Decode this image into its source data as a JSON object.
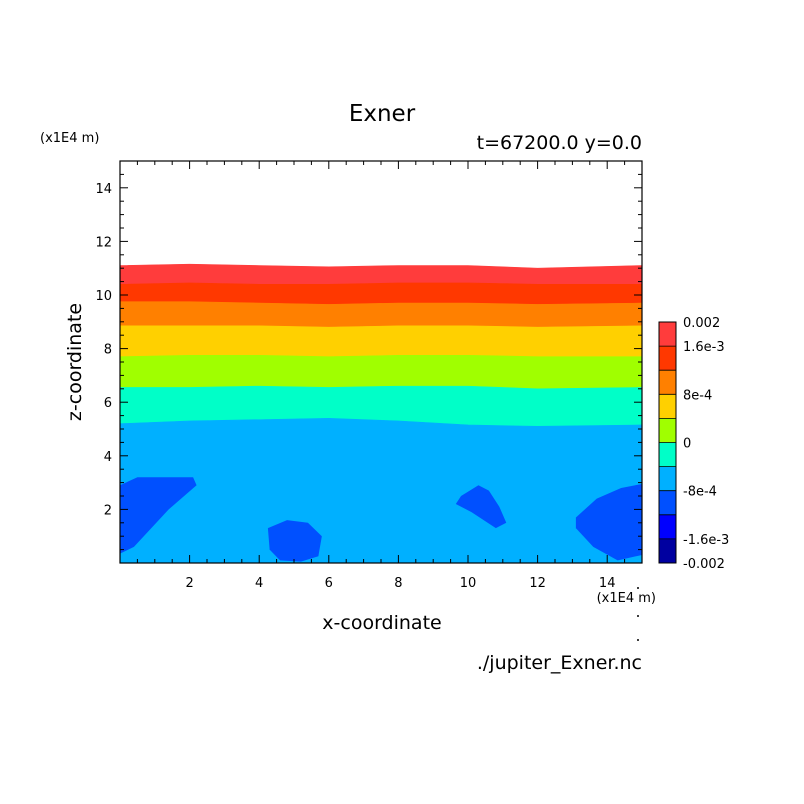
{
  "chart_data": {
    "type": "contour",
    "title": "Exner",
    "subtitle": "t=67200.0 y=0.0",
    "xlabel": "x-coordinate",
    "ylabel": "z-coordinate",
    "x_unit": "(x1E4 m)",
    "y_unit": "(x1E4 m)",
    "xlim": [
      0,
      15
    ],
    "ylim": [
      0,
      15
    ],
    "x_ticks": [
      2,
      4,
      6,
      8,
      10,
      12,
      14
    ],
    "y_ticks": [
      2,
      4,
      6,
      8,
      10,
      12,
      14
    ],
    "footer": "./jupiter_Exner.nc",
    "grid": false,
    "colorbar": {
      "location": "right",
      "levels": [
        -0.002,
        -0.0016,
        -0.0012,
        -0.0008,
        -0.0004,
        0,
        0.0004,
        0.0008,
        0.0012,
        0.0016,
        0.002
      ],
      "colors": [
        "#0000a0",
        "#0000ff",
        "#0050ff",
        "#00b0ff",
        "#00ffc8",
        "#a0ff00",
        "#ffd000",
        "#ff8000",
        "#ff3800",
        "#ff3c3c"
      ],
      "tick_labels": [
        {
          "value": 0.002,
          "label": "0.002"
        },
        {
          "value": 0.0016,
          "label": "1.6e-3"
        },
        {
          "value": 0.0008,
          "label": "8e-4"
        },
        {
          "value": 0,
          "label": "0"
        },
        {
          "value": -0.0008,
          "label": "-8e-4"
        },
        {
          "value": -0.0016,
          "label": "-1.6e-3"
        },
        {
          "value": -0.002,
          "label": "-0.002"
        }
      ]
    },
    "bands": [
      {
        "color": "#ff3c3c",
        "z_top": [
          11.1,
          11.15,
          11.1,
          11.05,
          11.1,
          11.1,
          11.0,
          11.1
        ],
        "z_bottom": [
          10.4,
          10.45,
          10.4,
          10.4,
          10.45,
          10.45,
          10.4,
          10.4
        ]
      },
      {
        "color": "#ff3800",
        "z_top": [
          10.4,
          10.45,
          10.4,
          10.4,
          10.45,
          10.45,
          10.4,
          10.4
        ],
        "z_bottom": [
          9.75,
          9.75,
          9.7,
          9.65,
          9.7,
          9.7,
          9.65,
          9.7
        ]
      },
      {
        "color": "#ff8000",
        "z_top": [
          9.75,
          9.75,
          9.7,
          9.65,
          9.7,
          9.7,
          9.65,
          9.7
        ],
        "z_bottom": [
          8.85,
          8.85,
          8.85,
          8.8,
          8.85,
          8.85,
          8.8,
          8.85
        ]
      },
      {
        "color": "#ffd000",
        "z_top": [
          8.85,
          8.85,
          8.85,
          8.8,
          8.85,
          8.85,
          8.8,
          8.85
        ],
        "z_bottom": [
          7.7,
          7.75,
          7.75,
          7.7,
          7.75,
          7.75,
          7.7,
          7.7
        ]
      },
      {
        "color": "#a0ff00",
        "z_top": [
          7.7,
          7.75,
          7.75,
          7.7,
          7.75,
          7.75,
          7.7,
          7.7
        ],
        "z_bottom": [
          6.55,
          6.55,
          6.6,
          6.55,
          6.6,
          6.6,
          6.5,
          6.55
        ]
      },
      {
        "color": "#00ffc8",
        "z_top": [
          6.55,
          6.55,
          6.6,
          6.55,
          6.6,
          6.6,
          6.5,
          6.55
        ],
        "z_bottom": [
          5.2,
          5.3,
          5.35,
          5.4,
          5.3,
          5.15,
          5.1,
          5.15
        ]
      },
      {
        "color": "#00b0ff",
        "z_top": [
          5.2,
          5.3,
          5.35,
          5.4,
          5.3,
          5.15,
          5.1,
          5.15
        ],
        "z_bottom": [
          0,
          0,
          0,
          0,
          0,
          0,
          0,
          0
        ]
      }
    ],
    "band_x": [
      0,
      2,
      4,
      6,
      8,
      10,
      12,
      15
    ],
    "blobs": [
      {
        "color": "#0050ff",
        "points": [
          [
            0,
            2.9
          ],
          [
            0.5,
            3.2
          ],
          [
            2.1,
            3.2
          ],
          [
            2.2,
            2.9
          ],
          [
            1.4,
            2.0
          ],
          [
            0.4,
            0.6
          ],
          [
            0,
            0.35
          ]
        ]
      },
      {
        "color": "#0050ff",
        "points": [
          [
            4.25,
            1.3
          ],
          [
            4.8,
            1.6
          ],
          [
            5.4,
            1.5
          ],
          [
            5.8,
            1.0
          ],
          [
            5.7,
            0.25
          ],
          [
            5.2,
            0.05
          ],
          [
            4.6,
            0.1
          ],
          [
            4.3,
            0.5
          ]
        ]
      },
      {
        "color": "#0050ff",
        "points": [
          [
            9.8,
            2.5
          ],
          [
            10.3,
            2.9
          ],
          [
            10.6,
            2.7
          ],
          [
            10.9,
            2.1
          ],
          [
            11.1,
            1.5
          ],
          [
            10.8,
            1.3
          ],
          [
            10.1,
            1.9
          ],
          [
            9.65,
            2.2
          ]
        ]
      },
      {
        "color": "#0050ff",
        "points": [
          [
            15,
            2.95
          ],
          [
            14.4,
            2.8
          ],
          [
            13.7,
            2.4
          ],
          [
            13.1,
            1.7
          ],
          [
            13.1,
            1.3
          ],
          [
            13.6,
            0.6
          ],
          [
            14.3,
            0.1
          ],
          [
            15,
            0.3
          ]
        ]
      }
    ]
  }
}
